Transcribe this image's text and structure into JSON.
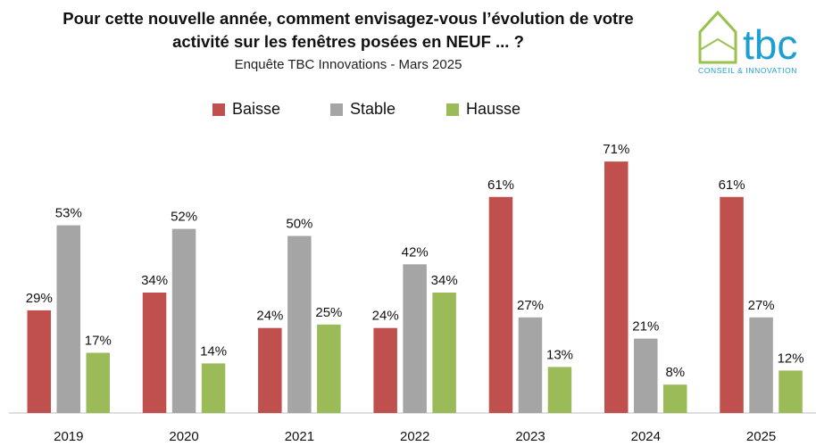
{
  "title": {
    "line1": "Pour cette nouvelle année, comment envisagez-vous l’évolution de votre",
    "line2": "activité sur les fenêtres posées en NEUF ... ?",
    "subtitle": "Enquête TBC Innovations - Mars 2025"
  },
  "logo": {
    "text": "tbc",
    "tagline": "CONSEIL & INNOVATION",
    "icon": "house-icon",
    "color": "#9ac04e"
  },
  "colors": {
    "Baisse": "#c0504d",
    "Stable": "#a5a5a5",
    "Hausse": "#9bbb59"
  },
  "chart_data": {
    "type": "bar",
    "categories": [
      "2019",
      "2020",
      "2021",
      "2022",
      "2023",
      "2024",
      "2025"
    ],
    "series": [
      {
        "name": "Baisse",
        "values": [
          29,
          34,
          24,
          24,
          61,
          71,
          61
        ]
      },
      {
        "name": "Stable",
        "values": [
          53,
          52,
          50,
          42,
          27,
          21,
          27
        ]
      },
      {
        "name": "Hausse",
        "values": [
          17,
          14,
          25,
          34,
          13,
          8,
          12
        ]
      }
    ],
    "value_suffix": "%",
    "ylim": [
      0,
      75
    ],
    "grid": false,
    "legend": "top-center"
  }
}
